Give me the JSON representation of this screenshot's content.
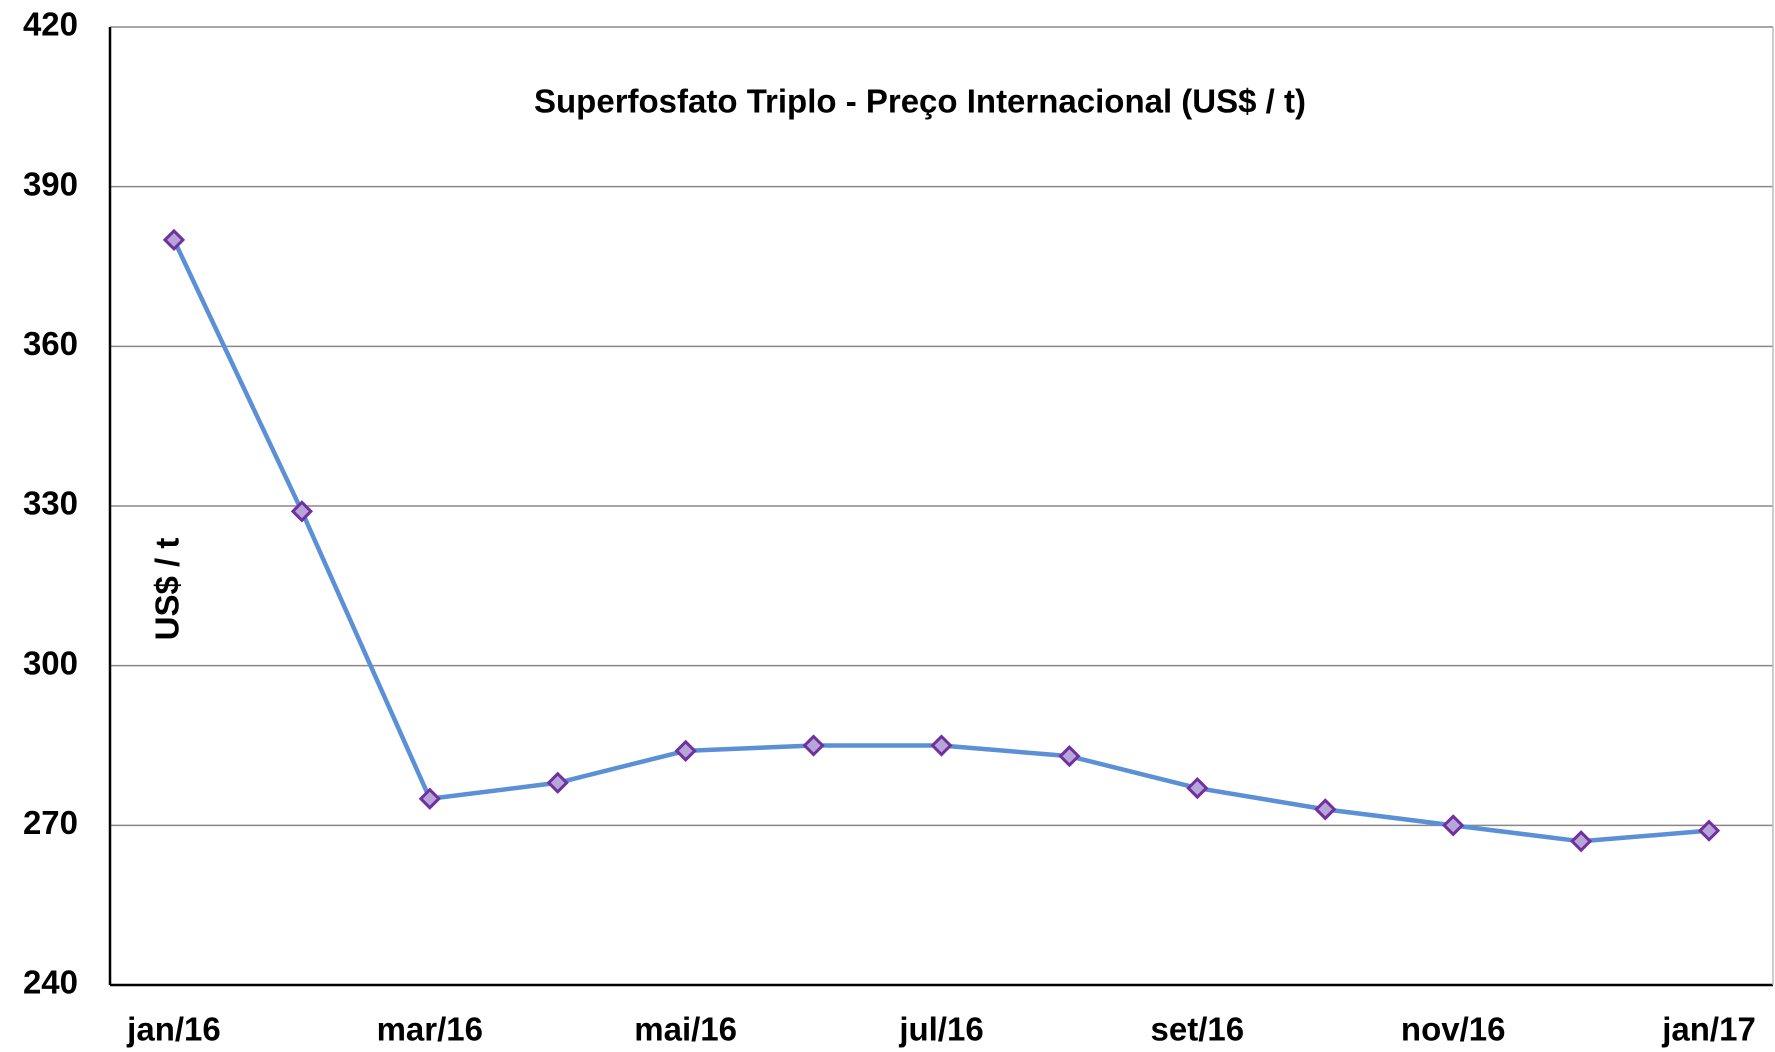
{
  "chart_data": {
    "type": "line",
    "title": "Superfosfato Triplo - Preço Internacional (US$ / t)",
    "y_label": "US$ / t",
    "categories": [
      "jan/16",
      null,
      "mar/16",
      null,
      "mai/16",
      null,
      "jul/16",
      null,
      "set/16",
      null,
      "nov/16",
      null,
      "jan/17"
    ],
    "series": [
      {
        "name": "Preço",
        "color": "#5b8fd6",
        "marker_color": "#7030a0",
        "values": [
          380,
          329,
          275,
          278,
          284,
          285,
          285,
          283,
          277,
          273,
          270,
          267,
          269
        ]
      }
    ],
    "ylim": [
      240,
      420
    ],
    "yticks": [
      240,
      270,
      300,
      330,
      360,
      390,
      420
    ],
    "grid": true
  }
}
